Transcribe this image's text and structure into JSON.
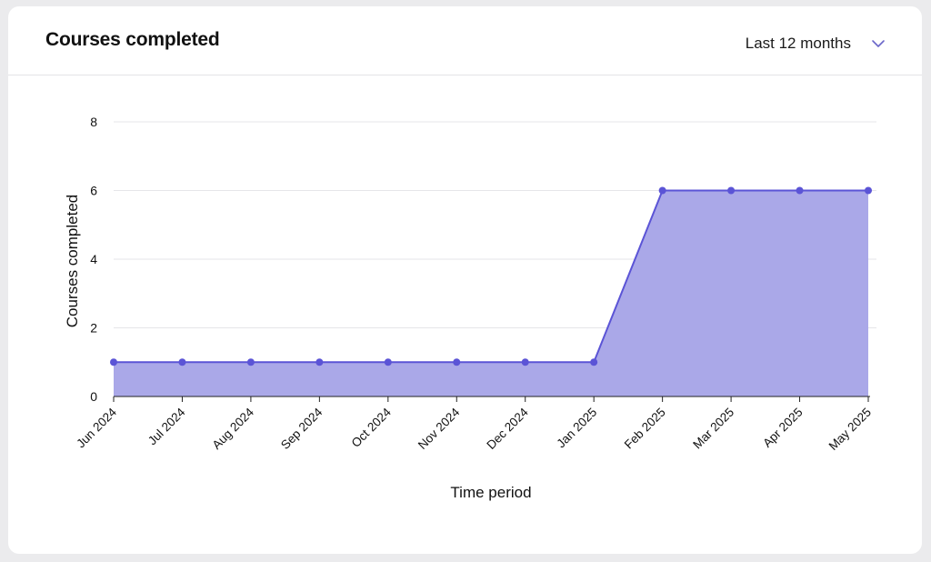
{
  "card": {
    "title": "Courses completed",
    "period_select": {
      "value": "Last 12 months",
      "icon": "chevron-down-icon"
    }
  },
  "colors": {
    "series": "#5b54d6",
    "fill": "#aaa8e8",
    "grid": "#e6e6e9",
    "axis": "#222222"
  },
  "chart_data": {
    "type": "area",
    "title": "",
    "xlabel": "Time period",
    "ylabel": "Courses completed",
    "ylim": [
      0,
      8
    ],
    "yticks": [
      0,
      2,
      4,
      6,
      8
    ],
    "grid": true,
    "categories": [
      "Jun 2024",
      "Jul 2024",
      "Aug 2024",
      "Sep 2024",
      "Oct 2024",
      "Nov 2024",
      "Dec 2024",
      "Jan 2025",
      "Feb 2025",
      "Mar 2025",
      "Apr 2025",
      "May 2025"
    ],
    "values": [
      1,
      1,
      1,
      1,
      1,
      1,
      1,
      1,
      6,
      6,
      6,
      6
    ]
  }
}
